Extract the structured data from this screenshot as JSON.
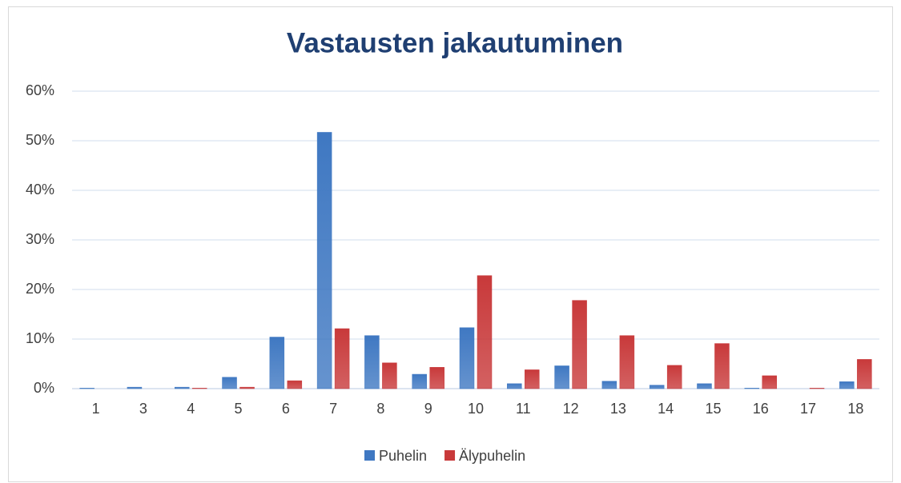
{
  "chart_data": {
    "type": "bar",
    "title": "Vastausten jakautuminen",
    "categories": [
      "1",
      "3",
      "4",
      "5",
      "6",
      "7",
      "8",
      "9",
      "10",
      "11",
      "12",
      "13",
      "14",
      "15",
      "16",
      "17",
      "18"
    ],
    "series": [
      {
        "name": "Puhelin",
        "color": "#3f78c2",
        "values": [
          0.1,
          0.3,
          0.3,
          2.3,
          10.4,
          51.7,
          10.7,
          2.9,
          12.3,
          1.0,
          4.6,
          1.5,
          0.7,
          1.0,
          0.1,
          0,
          1.4
        ]
      },
      {
        "name": "Älypuhelin",
        "color": "#c8393a",
        "values": [
          0,
          0,
          0.1,
          0.3,
          1.6,
          12.1,
          5.2,
          4.3,
          22.8,
          3.8,
          17.8,
          10.7,
          4.7,
          9.1,
          2.6,
          0.1,
          5.9
        ]
      }
    ],
    "ylim": [
      0,
      60
    ],
    "yticks": [
      {
        "value": 0,
        "label": "0%"
      },
      {
        "value": 10,
        "label": "10%"
      },
      {
        "value": 20,
        "label": "20%"
      },
      {
        "value": 30,
        "label": "30%"
      },
      {
        "value": 40,
        "label": "40%"
      },
      {
        "value": 50,
        "label": "50%"
      },
      {
        "value": 60,
        "label": "60%"
      }
    ],
    "grid": true,
    "legend": "bottom"
  }
}
